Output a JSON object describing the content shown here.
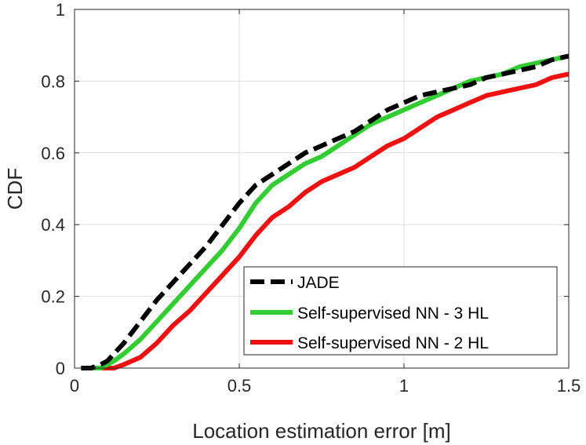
{
  "chart_data": {
    "type": "line",
    "title": "",
    "xlabel": "Location estimation error [m]",
    "ylabel": "CDF",
    "xlim": [
      0,
      1.5
    ],
    "ylim": [
      0,
      1
    ],
    "xticks": [
      0,
      0.5,
      1,
      1.5
    ],
    "xtick_labels": [
      "0",
      "0.5",
      "1",
      "1.5"
    ],
    "yticks": [
      0,
      0.2,
      0.4,
      0.6,
      0.8,
      1
    ],
    "ytick_labels": [
      "0",
      "0.2",
      "0.4",
      "0.6",
      "0.8",
      "1"
    ],
    "grid": true,
    "legend_position": "bottom-right",
    "series": [
      {
        "name": "JADE",
        "color": "#000000",
        "dash": true,
        "x": [
          0.02,
          0.05,
          0.08,
          0.1,
          0.12,
          0.15,
          0.2,
          0.25,
          0.3,
          0.35,
          0.4,
          0.45,
          0.5,
          0.55,
          0.6,
          0.65,
          0.7,
          0.75,
          0.8,
          0.85,
          0.9,
          0.95,
          1.0,
          1.05,
          1.1,
          1.15,
          1.2,
          1.25,
          1.3,
          1.35,
          1.4,
          1.45,
          1.5
        ],
        "y": [
          0.0,
          0.0,
          0.01,
          0.02,
          0.04,
          0.07,
          0.13,
          0.19,
          0.24,
          0.29,
          0.34,
          0.4,
          0.46,
          0.51,
          0.54,
          0.57,
          0.6,
          0.62,
          0.64,
          0.66,
          0.69,
          0.72,
          0.74,
          0.76,
          0.77,
          0.78,
          0.79,
          0.81,
          0.82,
          0.83,
          0.84,
          0.86,
          0.87
        ]
      },
      {
        "name": "Self-supervised NN - 3 HL",
        "color": "#33cc33",
        "dash": false,
        "x": [
          0.02,
          0.05,
          0.08,
          0.1,
          0.12,
          0.15,
          0.2,
          0.25,
          0.3,
          0.35,
          0.4,
          0.45,
          0.5,
          0.55,
          0.6,
          0.65,
          0.7,
          0.75,
          0.8,
          0.85,
          0.9,
          0.95,
          1.0,
          1.05,
          1.1,
          1.15,
          1.2,
          1.25,
          1.3,
          1.35,
          1.4,
          1.45,
          1.5
        ],
        "y": [
          0.0,
          0.0,
          0.0,
          0.01,
          0.02,
          0.04,
          0.08,
          0.13,
          0.18,
          0.23,
          0.28,
          0.33,
          0.39,
          0.46,
          0.51,
          0.54,
          0.57,
          0.59,
          0.62,
          0.65,
          0.68,
          0.7,
          0.72,
          0.74,
          0.76,
          0.78,
          0.8,
          0.81,
          0.82,
          0.84,
          0.85,
          0.86,
          0.87
        ]
      },
      {
        "name": "Self-supervised NN - 2 HL",
        "color": "#ee1111",
        "dash": false,
        "x": [
          0.02,
          0.05,
          0.08,
          0.1,
          0.12,
          0.15,
          0.2,
          0.25,
          0.3,
          0.35,
          0.4,
          0.45,
          0.5,
          0.55,
          0.6,
          0.65,
          0.7,
          0.75,
          0.8,
          0.85,
          0.9,
          0.95,
          1.0,
          1.05,
          1.1,
          1.15,
          1.2,
          1.25,
          1.3,
          1.35,
          1.4,
          1.45,
          1.5
        ],
        "y": [
          0.0,
          0.0,
          0.0,
          0.0,
          0.0,
          0.01,
          0.03,
          0.07,
          0.12,
          0.16,
          0.21,
          0.26,
          0.31,
          0.37,
          0.42,
          0.45,
          0.49,
          0.52,
          0.54,
          0.56,
          0.59,
          0.62,
          0.64,
          0.67,
          0.7,
          0.72,
          0.74,
          0.76,
          0.77,
          0.78,
          0.79,
          0.81,
          0.82
        ]
      }
    ]
  }
}
